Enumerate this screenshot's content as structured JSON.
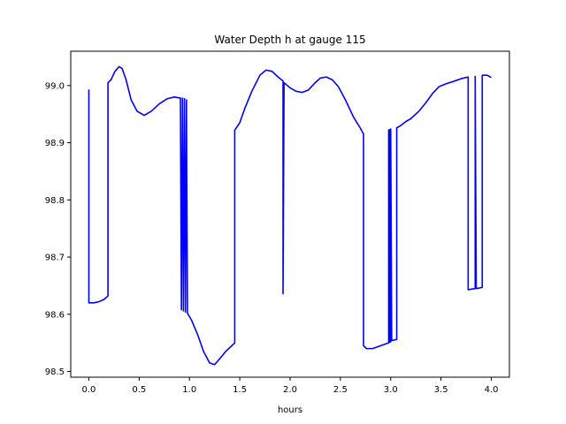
{
  "chart_data": {
    "type": "line",
    "title": "Water Depth h at gauge 115",
    "xlabel": "hours",
    "ylabel": "",
    "xlim": [
      -0.18,
      4.18
    ],
    "ylim": [
      98.49,
      99.06
    ],
    "xticks": [
      0.0,
      0.5,
      1.0,
      1.5,
      2.0,
      2.5,
      3.0,
      3.5,
      4.0
    ],
    "xtick_labels": [
      "0.0",
      "0.5",
      "1.0",
      "1.5",
      "2.0",
      "2.5",
      "3.0",
      "3.5",
      "4.0"
    ],
    "yticks": [
      98.5,
      98.6,
      98.7,
      98.8,
      98.9,
      99.0
    ],
    "ytick_labels": [
      "98.5",
      "98.6",
      "98.7",
      "98.8",
      "98.9",
      "99.0"
    ],
    "grid": false,
    "legend": "none",
    "series": [
      {
        "color": "#0000ff",
        "points": [
          [
            0.0,
            98.993
          ],
          [
            0.0,
            98.62
          ],
          [
            0.05,
            98.62
          ],
          [
            0.1,
            98.622
          ],
          [
            0.15,
            98.626
          ],
          [
            0.19,
            98.632
          ],
          [
            0.19,
            99.005
          ],
          [
            0.22,
            99.01
          ],
          [
            0.26,
            99.025
          ],
          [
            0.3,
            99.033
          ],
          [
            0.33,
            99.03
          ],
          [
            0.37,
            99.01
          ],
          [
            0.42,
            98.975
          ],
          [
            0.48,
            98.955
          ],
          [
            0.55,
            98.948
          ],
          [
            0.62,
            98.955
          ],
          [
            0.7,
            98.968
          ],
          [
            0.78,
            98.977
          ],
          [
            0.85,
            98.98
          ],
          [
            0.91,
            98.978
          ],
          [
            0.92,
            98.608
          ],
          [
            0.93,
            98.978
          ],
          [
            0.94,
            98.606
          ],
          [
            0.95,
            98.977
          ],
          [
            0.96,
            98.604
          ],
          [
            0.97,
            98.975
          ],
          [
            0.98,
            98.602
          ],
          [
            1.02,
            98.59
          ],
          [
            1.08,
            98.565
          ],
          [
            1.14,
            98.535
          ],
          [
            1.2,
            98.515
          ],
          [
            1.25,
            98.512
          ],
          [
            1.3,
            98.522
          ],
          [
            1.36,
            98.535
          ],
          [
            1.45,
            98.55
          ],
          [
            1.45,
            98.922
          ],
          [
            1.5,
            98.935
          ],
          [
            1.55,
            98.96
          ],
          [
            1.62,
            98.99
          ],
          [
            1.7,
            99.018
          ],
          [
            1.76,
            99.027
          ],
          [
            1.82,
            99.025
          ],
          [
            1.88,
            99.015
          ],
          [
            1.93,
            99.008
          ],
          [
            1.93,
            98.636
          ],
          [
            1.94,
            99.005
          ],
          [
            2.0,
            98.996
          ],
          [
            2.06,
            98.99
          ],
          [
            2.12,
            98.988
          ],
          [
            2.18,
            98.992
          ],
          [
            2.25,
            99.005
          ],
          [
            2.3,
            99.013
          ],
          [
            2.36,
            99.015
          ],
          [
            2.42,
            99.01
          ],
          [
            2.48,
            98.998
          ],
          [
            2.55,
            98.975
          ],
          [
            2.63,
            98.945
          ],
          [
            2.7,
            98.925
          ],
          [
            2.73,
            98.915
          ],
          [
            2.73,
            98.545
          ],
          [
            2.76,
            98.54
          ],
          [
            2.82,
            98.54
          ],
          [
            2.9,
            98.545
          ],
          [
            2.98,
            98.55
          ],
          [
            2.98,
            98.922
          ],
          [
            2.99,
            98.923
          ],
          [
            2.99,
            98.551
          ],
          [
            3.0,
            98.552
          ],
          [
            3.0,
            98.924
          ],
          [
            3.01,
            98.554
          ],
          [
            3.06,
            98.556
          ],
          [
            3.06,
            98.926
          ],
          [
            3.1,
            98.93
          ],
          [
            3.15,
            98.937
          ],
          [
            3.2,
            98.942
          ],
          [
            3.28,
            98.955
          ],
          [
            3.35,
            98.97
          ],
          [
            3.42,
            98.987
          ],
          [
            3.48,
            98.998
          ],
          [
            3.55,
            99.003
          ],
          [
            3.62,
            99.007
          ],
          [
            3.7,
            99.012
          ],
          [
            3.77,
            99.015
          ],
          [
            3.77,
            98.643
          ],
          [
            3.84,
            98.645
          ],
          [
            3.84,
            99.016
          ],
          [
            3.85,
            98.645
          ],
          [
            3.91,
            98.647
          ],
          [
            3.91,
            99.018
          ],
          [
            3.96,
            99.018
          ],
          [
            4.0,
            99.014
          ]
        ]
      }
    ]
  }
}
